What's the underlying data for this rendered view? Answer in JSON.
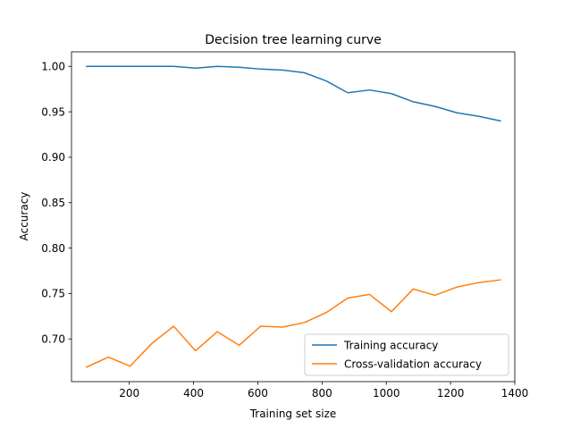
{
  "chart_data": {
    "type": "line",
    "title": "Decision tree learning curve",
    "xlabel": "Training set size",
    "ylabel": "Accuracy",
    "xlim": [
      20,
      1400
    ],
    "ylim": [
      0.653,
      1.016
    ],
    "xticks": [
      200,
      400,
      600,
      800,
      1000,
      1200,
      1400
    ],
    "xtick_labels": [
      "200",
      "400",
      "600",
      "800",
      "1000",
      "1200",
      "1400"
    ],
    "yticks": [
      0.7,
      0.75,
      0.8,
      0.85,
      0.9,
      0.95,
      1.0
    ],
    "ytick_labels": [
      "0.70",
      "0.75",
      "0.80",
      "0.85",
      "0.90",
      "0.95",
      "1.00"
    ],
    "grid": false,
    "legend_position": "lower-right",
    "x": [
      67,
      135,
      202,
      270,
      338,
      406,
      474,
      542,
      609,
      677,
      745,
      813,
      880,
      948,
      1016,
      1084,
      1151,
      1219,
      1287,
      1355
    ],
    "series": [
      {
        "name": "Training accuracy",
        "color": "#1f77b4",
        "values": [
          1.0,
          1.0,
          1.0,
          1.0,
          1.0,
          0.998,
          1.0,
          0.999,
          0.997,
          0.996,
          0.993,
          0.984,
          0.971,
          0.974,
          0.97,
          0.961,
          0.956,
          0.949,
          0.945,
          0.94
        ]
      },
      {
        "name": "Cross-validation accuracy",
        "color": "#ff7f0e",
        "values": [
          0.669,
          0.68,
          0.67,
          0.695,
          0.714,
          0.687,
          0.708,
          0.693,
          0.714,
          0.713,
          0.718,
          0.729,
          0.745,
          0.749,
          0.73,
          0.755,
          0.748,
          0.757,
          0.762,
          0.765
        ]
      }
    ]
  }
}
